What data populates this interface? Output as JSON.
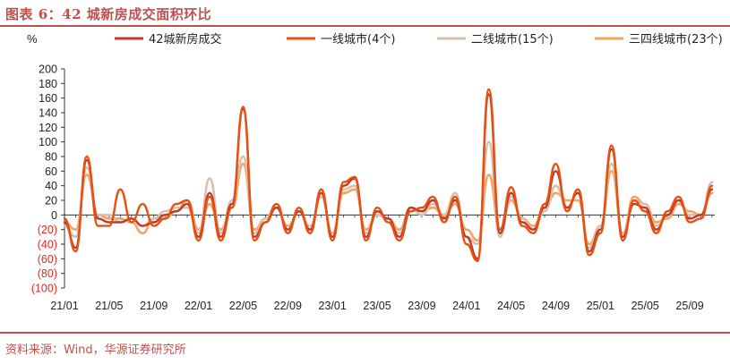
{
  "header": {
    "title": "图表 6：42 城新房成交面积环比"
  },
  "footer": {
    "source": "资料来源：Wind，华源证券研究所"
  },
  "chart_data": {
    "type": "line",
    "title": "42城新房成交面积环比",
    "unit_label": "%",
    "ylim": [
      -100,
      200
    ],
    "y_ticks": [
      200,
      180,
      160,
      140,
      120,
      100,
      80,
      60,
      40,
      20,
      0,
      -20,
      -40,
      -60,
      -80,
      -100
    ],
    "y_tick_labels": [
      "200",
      "180",
      "160",
      "140",
      "120",
      "100",
      "80",
      "60",
      "40",
      "20",
      "0",
      "(20)",
      "(40)",
      "(60)",
      "(80)",
      "(100)"
    ],
    "x_tick_labels": [
      "21/01",
      "21/05",
      "21/09",
      "22/01",
      "22/05",
      "22/09",
      "23/01",
      "23/05",
      "23/09",
      "24/01",
      "24/05",
      "24/09",
      "25/01",
      "25/05",
      "25/09"
    ],
    "x_tick_index": [
      0,
      4,
      8,
      12,
      16,
      20,
      24,
      28,
      32,
      36,
      40,
      44,
      48,
      52,
      56
    ],
    "legend_position": "top",
    "grid": false,
    "series": [
      {
        "name": "42城新房成交面积环比",
        "color": "#c0392b",
        "values": [
          -10,
          -45,
          75,
          -5,
          -10,
          -10,
          -5,
          -15,
          -10,
          0,
          5,
          15,
          -30,
          30,
          -30,
          15,
          145,
          -30,
          -10,
          10,
          -20,
          5,
          -20,
          30,
          -30,
          40,
          50,
          -30,
          5,
          -5,
          -30,
          10,
          5,
          20,
          -5,
          20,
          -30,
          -60,
          165,
          -25,
          30,
          -10,
          -20,
          10,
          60,
          10,
          30,
          -50,
          -20,
          90,
          -30,
          15,
          10,
          -20,
          0,
          20,
          -5,
          0,
          35
        ]
      },
      {
        "name": "一线城市(4个)",
        "color": "#e8500f",
        "values": [
          -5,
          -50,
          80,
          -15,
          -15,
          35,
          -10,
          15,
          -15,
          -5,
          15,
          20,
          -35,
          25,
          -35,
          10,
          148,
          -35,
          -10,
          15,
          -25,
          10,
          -25,
          35,
          -35,
          45,
          52,
          -35,
          10,
          -10,
          -35,
          5,
          10,
          25,
          -10,
          25,
          -40,
          -63,
          172,
          -20,
          38,
          -15,
          -25,
          15,
          70,
          5,
          35,
          -55,
          -25,
          95,
          -35,
          20,
          5,
          -25,
          5,
          25,
          -10,
          -5,
          40
        ]
      },
      {
        "name": "二线城市(15个)",
        "color": "#d9c0ac",
        "values": [
          -15,
          -30,
          65,
          0,
          0,
          -10,
          -5,
          -15,
          -5,
          5,
          10,
          10,
          -25,
          50,
          -25,
          20,
          80,
          -25,
          -5,
          15,
          -20,
          5,
          -15,
          25,
          -25,
          35,
          40,
          -25,
          0,
          -5,
          -25,
          10,
          0,
          15,
          0,
          30,
          -30,
          -40,
          100,
          -30,
          25,
          -5,
          -20,
          5,
          40,
          10,
          30,
          -45,
          -15,
          70,
          -25,
          20,
          15,
          -15,
          0,
          20,
          0,
          0,
          45
        ]
      },
      {
        "name": "三四线城市(23个)",
        "color": "#f5a45d",
        "values": [
          -10,
          -20,
          55,
          0,
          -5,
          -5,
          -10,
          -25,
          -5,
          -5,
          5,
          20,
          -20,
          15,
          -20,
          10,
          70,
          -20,
          -5,
          10,
          -15,
          5,
          -20,
          25,
          -25,
          30,
          35,
          -20,
          0,
          -5,
          -20,
          10,
          5,
          10,
          0,
          15,
          -20,
          -35,
          55,
          -20,
          20,
          -5,
          -15,
          10,
          30,
          20,
          20,
          -40,
          -15,
          60,
          -25,
          25,
          15,
          -10,
          -5,
          15,
          5,
          0,
          30
        ]
      }
    ]
  }
}
